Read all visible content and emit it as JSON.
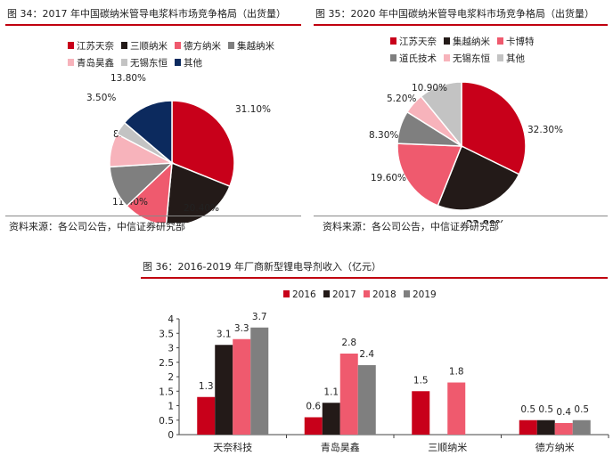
{
  "figures": {
    "fig34_title": "图 34：2017 年中国碳纳米管导电浆料市场竞争格局（出货量）",
    "fig35_title": "图 35：2020 年中国碳纳米管导电浆料市场竞争格局（出货量）",
    "fig36_title": "图 36：2016-2019 年厂商新型锂电导剂收入（亿元）",
    "source34": "资料来源：各公司公告，中信证券研究部",
    "source35": "资料来源：各公司公告，中信证券研究部"
  },
  "chart_data": [
    {
      "type": "pie",
      "title": "图 34：2017 年中国碳纳米管导电浆料市场竞争格局（出货量）",
      "legend": [
        "江苏天奈",
        "三顺纳米",
        "德方纳米",
        "集越纳米",
        "青岛昊鑫",
        "无锡东恒",
        "其他"
      ],
      "slices": [
        {
          "label": "江苏天奈",
          "value": 31.1,
          "text": "31.10%",
          "color": "#c8001a"
        },
        {
          "label": "三顺纳米",
          "value": 20.4,
          "text": "20.40%",
          "color": "#231a18"
        },
        {
          "label": "德方纳米",
          "value": 11.4,
          "text": "11.40%",
          "color": "#ef5a6e"
        },
        {
          "label": "集越纳米",
          "value": 11.1,
          "text": "11.10%",
          "color": "#7f7f7f"
        },
        {
          "label": "青岛昊鑫",
          "value": 8.7,
          "text": "8.70%",
          "color": "#f7b3bb"
        },
        {
          "label": "无锡东恒",
          "value": 3.5,
          "text": "3.50%",
          "color": "#c3c3c3"
        },
        {
          "label": "其他",
          "value": 13.8,
          "text": "13.80%",
          "color": "#0c2a5e"
        }
      ]
    },
    {
      "type": "pie",
      "title": "图 35：2020 年中国碳纳米管导电浆料市场竞争格局（出货量）",
      "legend": [
        "江苏天奈",
        "集越纳米",
        "卡博特",
        "道氏技术",
        "无锡东恒",
        "其他"
      ],
      "slices": [
        {
          "label": "江苏天奈",
          "value": 32.3,
          "text": "32.30%",
          "color": "#c8001a"
        },
        {
          "label": "集越纳米",
          "value": 23.8,
          "text": "23.80%",
          "color": "#231a18"
        },
        {
          "label": "卡博特",
          "value": 19.6,
          "text": "19.60%",
          "color": "#ef5a6e"
        },
        {
          "label": "道氏技术",
          "value": 8.3,
          "text": "8.30%",
          "color": "#7f7f7f"
        },
        {
          "label": "无锡东恒",
          "value": 5.2,
          "text": "5.20%",
          "color": "#f7b3bb"
        },
        {
          "label": "其他",
          "value": 10.9,
          "text": "10.90%",
          "color": "#c3c3c3"
        }
      ]
    },
    {
      "type": "bar",
      "title": "图 36：2016-2019 年厂商新型锂电导剂收入（亿元）",
      "categories": [
        "天奈科技",
        "青岛昊鑫",
        "三顺纳米",
        "德方纳米"
      ],
      "series": [
        {
          "name": "2016",
          "color": "#c8001a",
          "values": [
            1.3,
            0.6,
            1.5,
            0.5
          ]
        },
        {
          "name": "2017",
          "color": "#231a18",
          "values": [
            3.1,
            1.1,
            null,
            0.5
          ]
        },
        {
          "name": "2018",
          "color": "#ef5a6e",
          "values": [
            3.3,
            2.8,
            1.8,
            0.4
          ]
        },
        {
          "name": "2019",
          "color": "#7f7f7f",
          "values": [
            3.7,
            2.4,
            null,
            0.5
          ]
        }
      ],
      "ylim": [
        0,
        4
      ],
      "yticks": [
        "0",
        "0.5",
        "1",
        "1.5",
        "2",
        "2.5",
        "3",
        "3.5",
        "4"
      ],
      "legend_position": "top",
      "grid": false
    }
  ]
}
